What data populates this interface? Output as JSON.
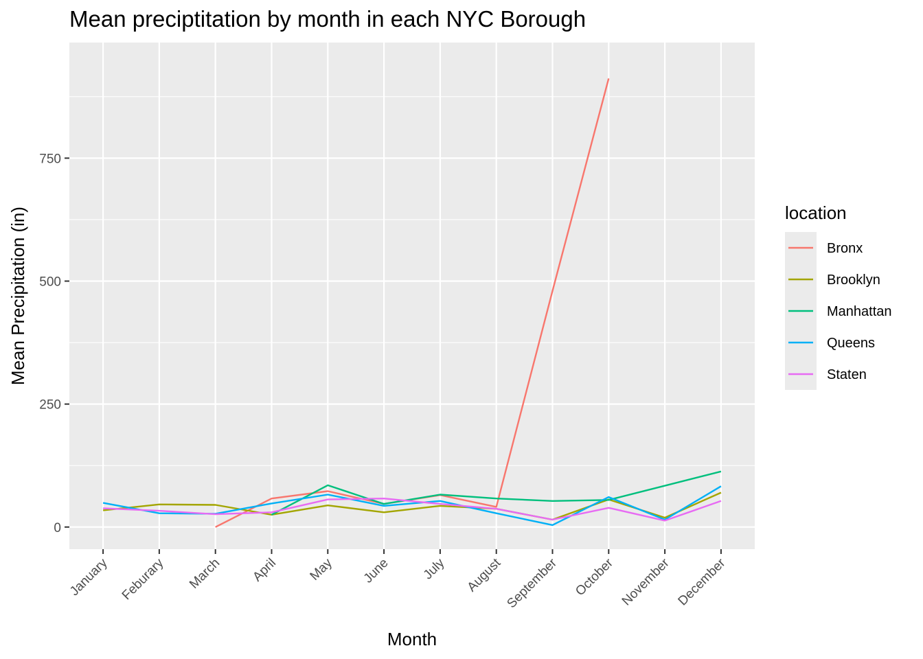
{
  "chart_data": {
    "type": "line",
    "title": "Mean preciptitation by month in each NYC Borough",
    "xlabel": "Month",
    "ylabel": "Mean Precipitation (in)",
    "ylim": [
      -45,
      985
    ],
    "yticks": [
      0,
      250,
      500,
      750
    ],
    "grid": true,
    "legend_title": "location",
    "legend_position": "right",
    "categories": [
      "January",
      "Feburary",
      "March",
      "April",
      "May",
      "June",
      "July",
      "August",
      "September",
      "October",
      "November",
      "December"
    ],
    "series": [
      {
        "name": "Bronx",
        "color": "#F8766D",
        "values": [
          null,
          null,
          0,
          58,
          73,
          47,
          65,
          41,
          480,
          912,
          null,
          null
        ]
      },
      {
        "name": "Brooklyn",
        "color": "#A3A500",
        "values": [
          34,
          46,
          45,
          25,
          44,
          30,
          43,
          37,
          15,
          56,
          19,
          70
        ]
      },
      {
        "name": "Manhattan",
        "color": "#00BF7D",
        "values": [
          null,
          null,
          null,
          25,
          85,
          47,
          66,
          58,
          53,
          55,
          84,
          113
        ]
      },
      {
        "name": "Queens",
        "color": "#00B0F6",
        "values": [
          49,
          28,
          27,
          48,
          66,
          43,
          53,
          28,
          4,
          61,
          15,
          83
        ]
      },
      {
        "name": "Staten",
        "color": "#E76BF3",
        "values": [
          38,
          33,
          26,
          30,
          56,
          58,
          47,
          37,
          15,
          39,
          13,
          53
        ]
      }
    ]
  }
}
